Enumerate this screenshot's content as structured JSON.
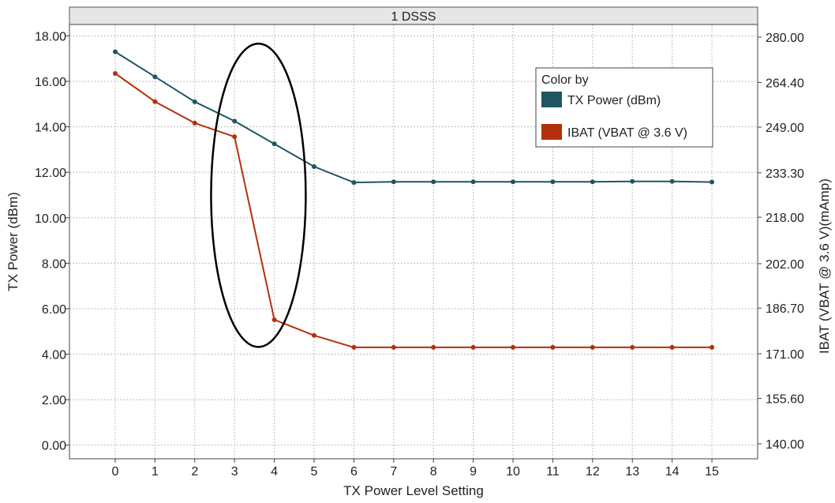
{
  "chart_data": {
    "type": "line",
    "title": "",
    "panel_label": "1 DSSS",
    "xlabel": "TX Power Level Setting",
    "ylabel": "TX Power (dBm)",
    "y2label": "IBAT (VBAT @ 3.6 V)(mAmp)",
    "x": [
      0,
      1,
      2,
      3,
      4,
      5,
      6,
      7,
      8,
      9,
      10,
      11,
      12,
      13,
      14,
      15
    ],
    "xlim": [
      -1.15,
      16.15
    ],
    "ylim": [
      -0.6,
      18.5
    ],
    "y2lim": [
      134.84,
      284.35
    ],
    "y_ticks": [
      "0.00",
      "2.00",
      "4.00",
      "6.00",
      "8.00",
      "10.00",
      "12.00",
      "14.00",
      "16.00",
      "18.00"
    ],
    "y2_ticks": [
      "140.00",
      "155.60",
      "171.00",
      "186.70",
      "202.00",
      "218.00",
      "233.30",
      "249.00",
      "264.40",
      "280.00"
    ],
    "y2_tick_positions": [
      140.0,
      155.6,
      171.0,
      186.7,
      202.0,
      218.0,
      233.3,
      249.0,
      264.4,
      280.0
    ],
    "grid": true,
    "legend_title": "Color by",
    "legend_position": "top-right",
    "series": [
      {
        "name": "TX Power (dBm)",
        "axis": "left",
        "color": "#1f5663",
        "values": [
          17.3,
          16.2,
          15.1,
          14.25,
          13.25,
          12.25,
          11.55,
          11.58,
          11.58,
          11.58,
          11.58,
          11.58,
          11.58,
          11.6,
          11.6,
          11.57
        ]
      },
      {
        "name": "IBAT (VBAT @ 3.6 V)",
        "axis": "right",
        "color": "#b3300b",
        "values": [
          267.5,
          257.8,
          250.4,
          245.7,
          182.7,
          177.3,
          173.2,
          173.2,
          173.2,
          173.2,
          173.2,
          173.2,
          173.2,
          173.2,
          173.2,
          173.2
        ]
      }
    ],
    "annotation": {
      "type": "ellipse",
      "center": [
        3.6,
        10.99
      ],
      "rx": 1.19,
      "ry": 6.67,
      "color": "#000000"
    }
  }
}
